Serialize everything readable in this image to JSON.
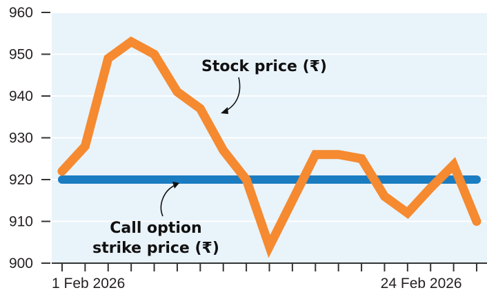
{
  "chart_data": {
    "type": "line",
    "title": "",
    "xlabel": "",
    "ylabel": "",
    "x": [
      "1 Feb 2026",
      "2 Feb 2026",
      "3 Feb 2026",
      "4 Feb 2026",
      "5 Feb 2026",
      "6 Feb 2026",
      "9 Feb 2026",
      "10 Feb 2026",
      "11 Feb 2026",
      "12 Feb 2026",
      "13 Feb 2026",
      "16 Feb 2026",
      "17 Feb 2026",
      "18 Feb 2026",
      "19 Feb 2026",
      "20 Feb 2026",
      "23 Feb 2026",
      "24 Feb 2026",
      "25 Feb 2026"
    ],
    "x_ticks_labeled": [
      "1 Feb 2026",
      "24 Feb 2026"
    ],
    "y_ticks": [
      900,
      910,
      920,
      930,
      940,
      950,
      960
    ],
    "ylim": [
      900,
      960
    ],
    "grid": true,
    "series": [
      {
        "name": "Stock price (₹)",
        "color": "#f58a30",
        "values": [
          922,
          928,
          949,
          953,
          950,
          941,
          937,
          927,
          920,
          904,
          915,
          926,
          926,
          925,
          916,
          912,
          918,
          923.5,
          910
        ]
      },
      {
        "name": "Call option strike price (₹)",
        "color": "#1a7cc1",
        "values": [
          920,
          920,
          920,
          920,
          920,
          920,
          920,
          920,
          920,
          920,
          920,
          920,
          920,
          920,
          920,
          920,
          920,
          920,
          920
        ]
      }
    ],
    "annotations": [
      {
        "lines": [
          "Stock price (₹)"
        ],
        "target_series": 0
      },
      {
        "lines": [
          "Call option",
          "strike price (₹)"
        ],
        "target_series": 1
      }
    ]
  }
}
